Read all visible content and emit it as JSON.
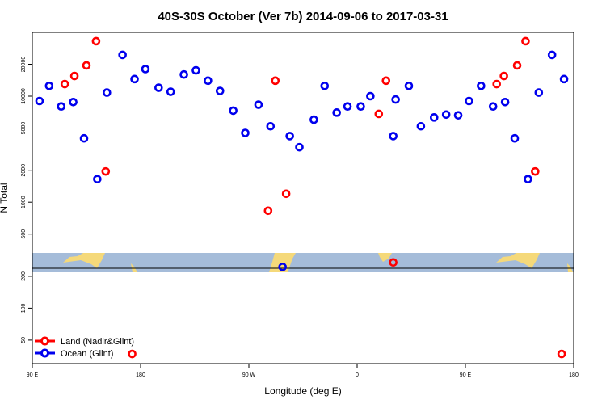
{
  "chart_data": {
    "type": "scatter",
    "title": "40S-30S October (Ver 7b)   2014-09-06 to 2017-03-31",
    "xlabel": "Longitude (deg E)",
    "ylabel": "N Total",
    "y_scale": "log",
    "xlim": [
      90,
      540
    ],
    "ylim": [
      30,
      40000
    ],
    "x_ticks": [
      {
        "value": 90,
        "label": "90 E"
      },
      {
        "value": 180,
        "label": "180"
      },
      {
        "value": 270,
        "label": "90 W"
      },
      {
        "value": 360,
        "label": "0"
      },
      {
        "value": 450,
        "label": "90 E"
      },
      {
        "value": 540,
        "label": "180"
      }
    ],
    "y_ticks": [
      {
        "value": 50,
        "label": "50"
      },
      {
        "value": 100,
        "label": "100"
      },
      {
        "value": 200,
        "label": "200"
      },
      {
        "value": 500,
        "label": "500"
      },
      {
        "value": 1000,
        "label": "1000"
      },
      {
        "value": 2000,
        "label": "2000"
      },
      {
        "value": 5000,
        "label": "5000"
      },
      {
        "value": 10000,
        "label": "10000"
      },
      {
        "value": 20000,
        "label": "20000"
      }
    ],
    "legend_position": "bottom-left",
    "map_band": {
      "ocean_color": "#a5bcd9",
      "land_color": "#f5d97a"
    },
    "series": [
      {
        "name": "Land (Nadir&Glint)",
        "color": "#ff0000",
        "points": [
          [
            117,
            13000
          ],
          [
            125,
            15500
          ],
          [
            135,
            19500
          ],
          [
            143,
            33000
          ],
          [
            151,
            1950
          ],
          [
            286,
            830
          ],
          [
            292,
            14000
          ],
          [
            301,
            1200
          ],
          [
            378,
            6800
          ],
          [
            384,
            14000
          ],
          [
            390,
            270
          ],
          [
            476,
            13000
          ],
          [
            482,
            15500
          ],
          [
            493,
            19500
          ],
          [
            500,
            33000
          ],
          [
            508,
            1950
          ],
          [
            173,
            37
          ],
          [
            530,
            37
          ]
        ]
      },
      {
        "name": "Ocean (Glint)",
        "color": "#0000ee",
        "points": [
          [
            96,
            9000
          ],
          [
            104,
            12500
          ],
          [
            114,
            8000
          ],
          [
            124,
            8800
          ],
          [
            133,
            4000
          ],
          [
            144,
            1650
          ],
          [
            152,
            10800
          ],
          [
            165,
            24500
          ],
          [
            175,
            14500
          ],
          [
            184,
            18000
          ],
          [
            195,
            12000
          ],
          [
            205,
            11000
          ],
          [
            216,
            16000
          ],
          [
            226,
            17500
          ],
          [
            236,
            14000
          ],
          [
            246,
            11200
          ],
          [
            257,
            7300
          ],
          [
            267,
            4500
          ],
          [
            278,
            8300
          ],
          [
            288,
            5200
          ],
          [
            298,
            245
          ],
          [
            304,
            4200
          ],
          [
            312,
            3300
          ],
          [
            324,
            6000
          ],
          [
            333,
            12500
          ],
          [
            343,
            7000
          ],
          [
            352,
            8000
          ],
          [
            363,
            8000
          ],
          [
            371,
            10000
          ],
          [
            390,
            4200
          ],
          [
            392,
            9300
          ],
          [
            403,
            12500
          ],
          [
            413,
            5200
          ],
          [
            424,
            6300
          ],
          [
            434,
            6700
          ],
          [
            444,
            6600
          ],
          [
            453,
            9000
          ],
          [
            463,
            12500
          ],
          [
            473,
            8000
          ],
          [
            483,
            8800
          ],
          [
            491,
            4000
          ],
          [
            502,
            1650
          ],
          [
            511,
            10800
          ],
          [
            522,
            24500
          ],
          [
            532,
            14500
          ]
        ]
      }
    ]
  }
}
